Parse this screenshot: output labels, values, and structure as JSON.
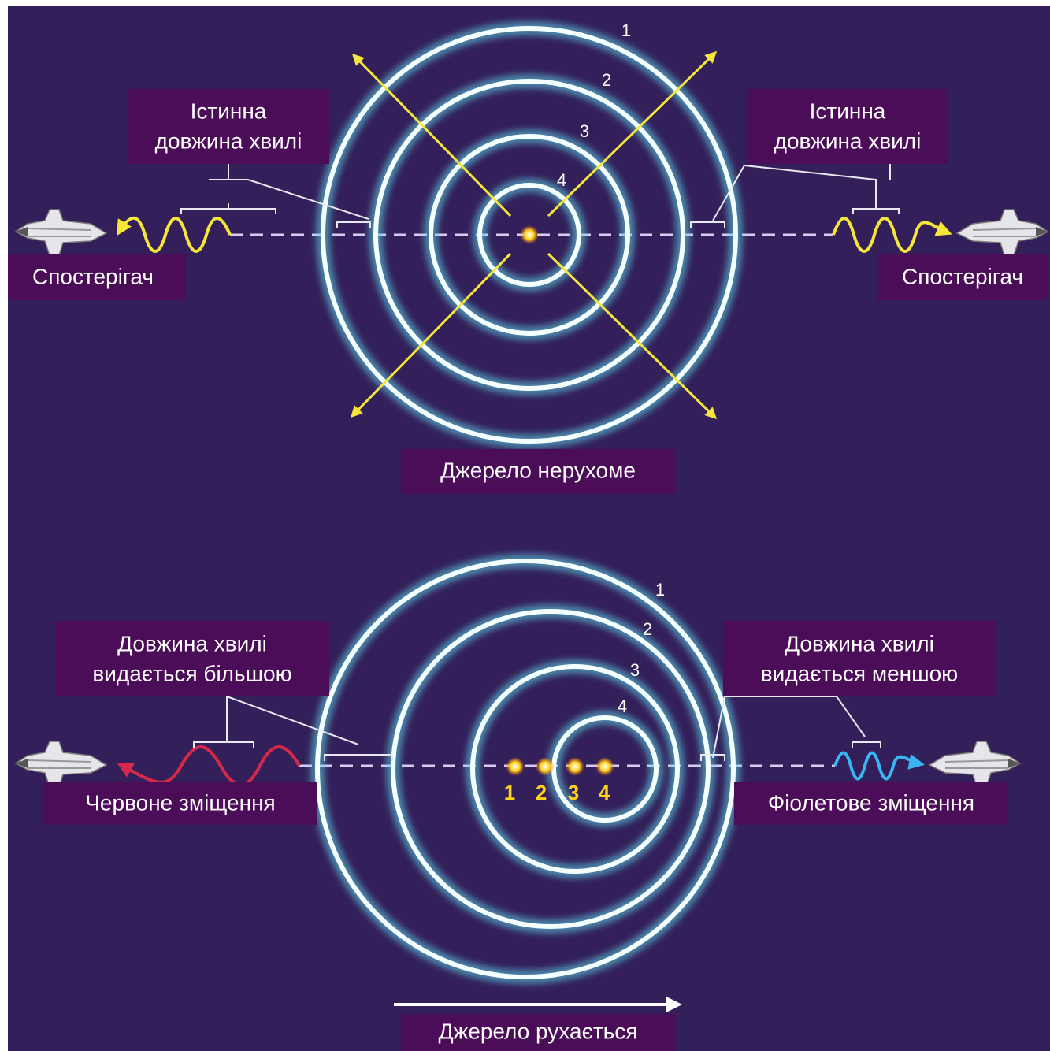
{
  "top": {
    "left_label": [
      "Істинна",
      "довжина хвилі"
    ],
    "right_label": [
      "Істинна",
      "довжина хвилі"
    ],
    "left_observer": "Спостерігач",
    "right_observer": "Спостерігач",
    "caption": "Джерело нерухоме",
    "ring_labels": [
      "1",
      "2",
      "3",
      "4"
    ]
  },
  "bottom": {
    "left_label": [
      "Довжина хвилі",
      "видається більшою"
    ],
    "right_label": [
      "Довжина хвилі",
      "видається меншою"
    ],
    "left_shift": "Червоне зміщення",
    "right_shift": "Фіолетове зміщення",
    "caption": "Джерело рухається",
    "ring_labels": [
      "1",
      "2",
      "3",
      "4"
    ],
    "source_labels": [
      "1",
      "2",
      "3",
      "4"
    ]
  }
}
